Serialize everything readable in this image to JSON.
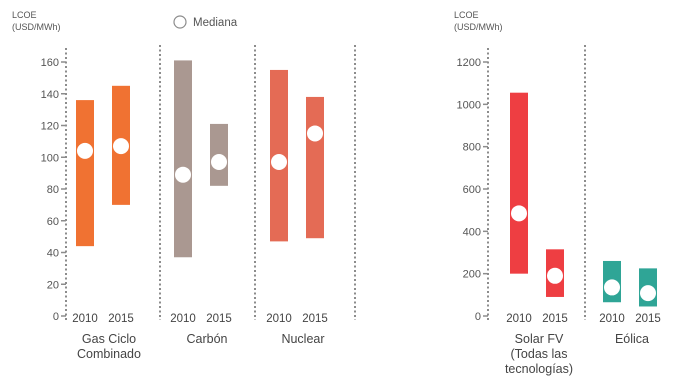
{
  "chart_data": [
    {
      "type": "range-bar",
      "ylabel_lines": [
        "LCOE",
        "(USD/MWh)"
      ],
      "ylim": [
        0,
        160
      ],
      "yticks": [
        "0",
        "20",
        "40",
        "60",
        "80",
        "100",
        "120",
        "140",
        "160"
      ],
      "legend": "Mediana",
      "groups": [
        {
          "label_lines": [
            "Gas Ciclo",
            "Combinado"
          ],
          "color": "#F07232",
          "bars": [
            {
              "year": "2010",
              "min": 44,
              "max": 136,
              "median": 104
            },
            {
              "year": "2015",
              "min": 70,
              "max": 145,
              "median": 107
            }
          ]
        },
        {
          "label_lines": [
            "Carbón"
          ],
          "color": "#AA9891",
          "bars": [
            {
              "year": "2010",
              "min": 37,
              "max": 161,
              "median": 89
            },
            {
              "year": "2015",
              "min": 82,
              "max": 121,
              "median": 97
            }
          ]
        },
        {
          "label_lines": [
            "Nuclear"
          ],
          "color": "#E46B55",
          "bars": [
            {
              "year": "2010",
              "min": 47,
              "max": 155,
              "median": 97
            },
            {
              "year": "2015",
              "min": 49,
              "max": 138,
              "median": 115
            }
          ]
        }
      ]
    },
    {
      "type": "range-bar",
      "ylabel_lines": [
        "LCOE",
        "(USD/MWh)"
      ],
      "ylim": [
        0,
        1200
      ],
      "yticks": [
        "0",
        "200",
        "400",
        "600",
        "800",
        "1000",
        "1200"
      ],
      "groups": [
        {
          "label_lines": [
            "Solar FV",
            "(Todas las",
            "tecnologías)"
          ],
          "color": "#EE3E42",
          "bars": [
            {
              "year": "2010",
              "min": 200,
              "max": 1055,
              "median": 485
            },
            {
              "year": "2015",
              "min": 90,
              "max": 315,
              "median": 190
            }
          ]
        },
        {
          "label_lines": [
            "Eólica"
          ],
          "color": "#2FA596",
          "bars": [
            {
              "year": "2010",
              "min": 65,
              "max": 260,
              "median": 135
            },
            {
              "year": "2015",
              "min": 45,
              "max": 225,
              "median": 108
            }
          ]
        }
      ]
    }
  ]
}
